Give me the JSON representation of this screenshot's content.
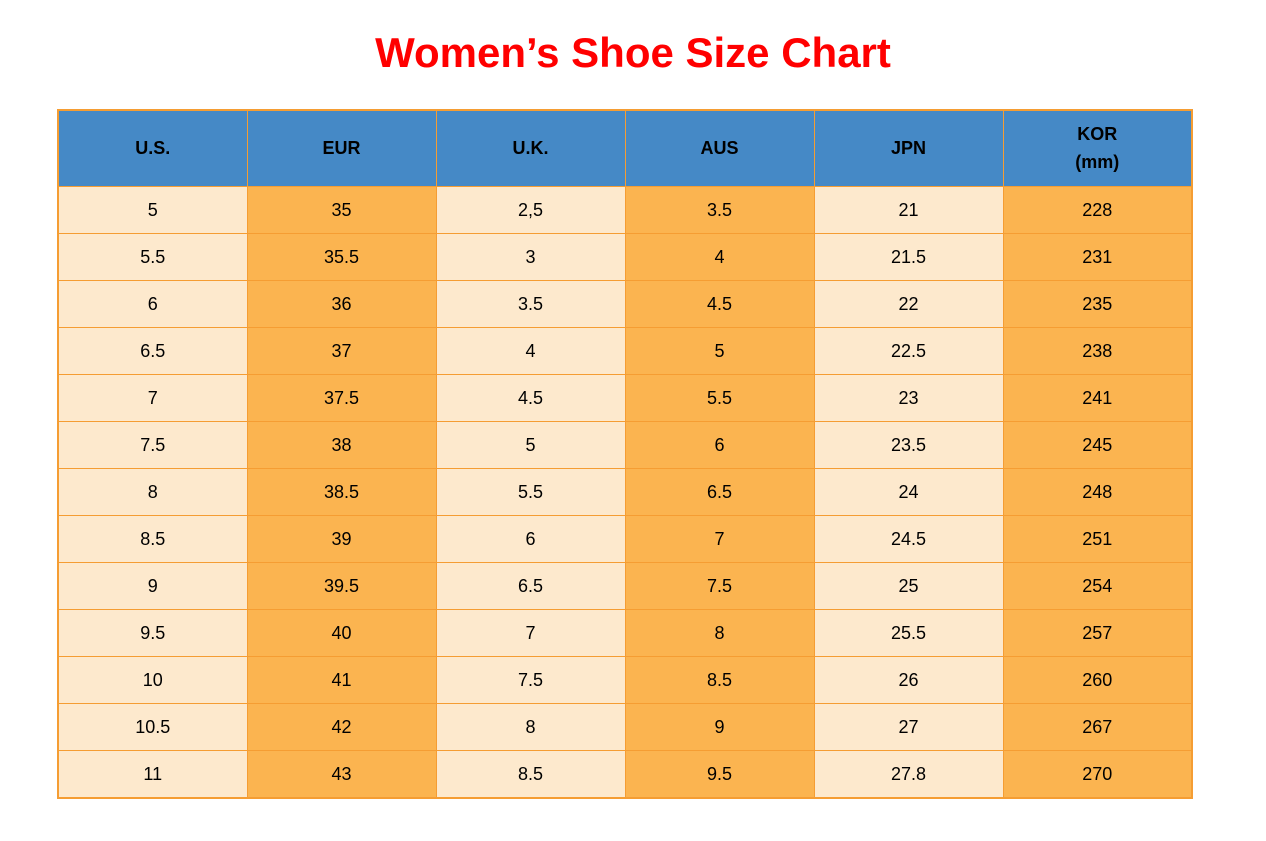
{
  "page": {
    "title": "Women’s Shoe Size Chart"
  },
  "colors": {
    "title_color": "#FF0000",
    "header_bg": "#4589C6",
    "col_light": "#FDE9CD",
    "col_orange": "#FBB450",
    "border_color": "#F59D33",
    "text_color": "#000000"
  },
  "chart_data": {
    "type": "table",
    "title": "Women’s Shoe Size Chart",
    "columns": [
      "U.S.",
      "EUR",
      "U.K.",
      "AUS",
      "JPN",
      "KOR\n(mm)"
    ],
    "rows": [
      [
        "5",
        "35",
        "2,5",
        "3.5",
        "21",
        "228"
      ],
      [
        "5.5",
        "35.5",
        "3",
        "4",
        "21.5",
        "231"
      ],
      [
        "6",
        "36",
        "3.5",
        "4.5",
        "22",
        "235"
      ],
      [
        "6.5",
        "37",
        "4",
        "5",
        "22.5",
        "238"
      ],
      [
        "7",
        "37.5",
        "4.5",
        "5.5",
        "23",
        "241"
      ],
      [
        "7.5",
        "38",
        "5",
        "6",
        "23.5",
        "245"
      ],
      [
        "8",
        "38.5",
        "5.5",
        "6.5",
        "24",
        "248"
      ],
      [
        "8.5",
        "39",
        "6",
        "7",
        "24.5",
        "251"
      ],
      [
        "9",
        "39.5",
        "6.5",
        "7.5",
        "25",
        "254"
      ],
      [
        "9.5",
        "40",
        "7",
        "8",
        "25.5",
        "257"
      ],
      [
        "10",
        "41",
        "7.5",
        "8.5",
        "26",
        "260"
      ],
      [
        "10.5",
        "42",
        "8",
        "9",
        "27",
        "267"
      ],
      [
        "11",
        "43",
        "8.5",
        "9.5",
        "27.8",
        "270"
      ]
    ],
    "layout": {
      "column_fill_pattern": [
        "light",
        "orange",
        "light",
        "orange",
        "light",
        "orange"
      ],
      "header_style": "blue-bold-black-text",
      "grid": true
    }
  }
}
